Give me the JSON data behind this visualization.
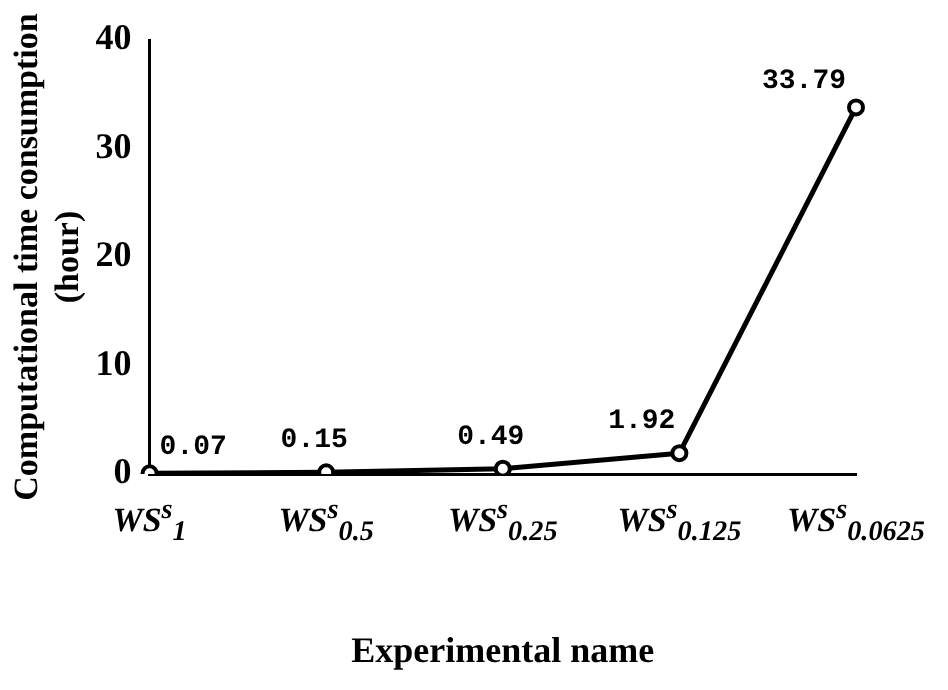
{
  "chart_data": {
    "type": "line",
    "xlabel": "Experimental name",
    "ylabel": "Computational time consumption (hour)",
    "categories": [
      "WS$^{s}$$_{1}$",
      "WS$^{s}$$_{0.5}$",
      "WS$^{s}$$_{0.25}$",
      "WS$^{s}$$_{0.125}$",
      "WS$^{s}$$_{0.0625}$"
    ],
    "series": [
      {
        "color": "#000000",
        "values": [
          0.07,
          0.15,
          0.49,
          1.92,
          33.79
        ]
      }
    ],
    "ylim": [
      0,
      40
    ],
    "yticks": [
      0,
      10,
      20,
      30,
      40
    ],
    "grid": false,
    "legend": false,
    "marker": "circle",
    "line_style": "solid",
    "data_labels": true
  }
}
